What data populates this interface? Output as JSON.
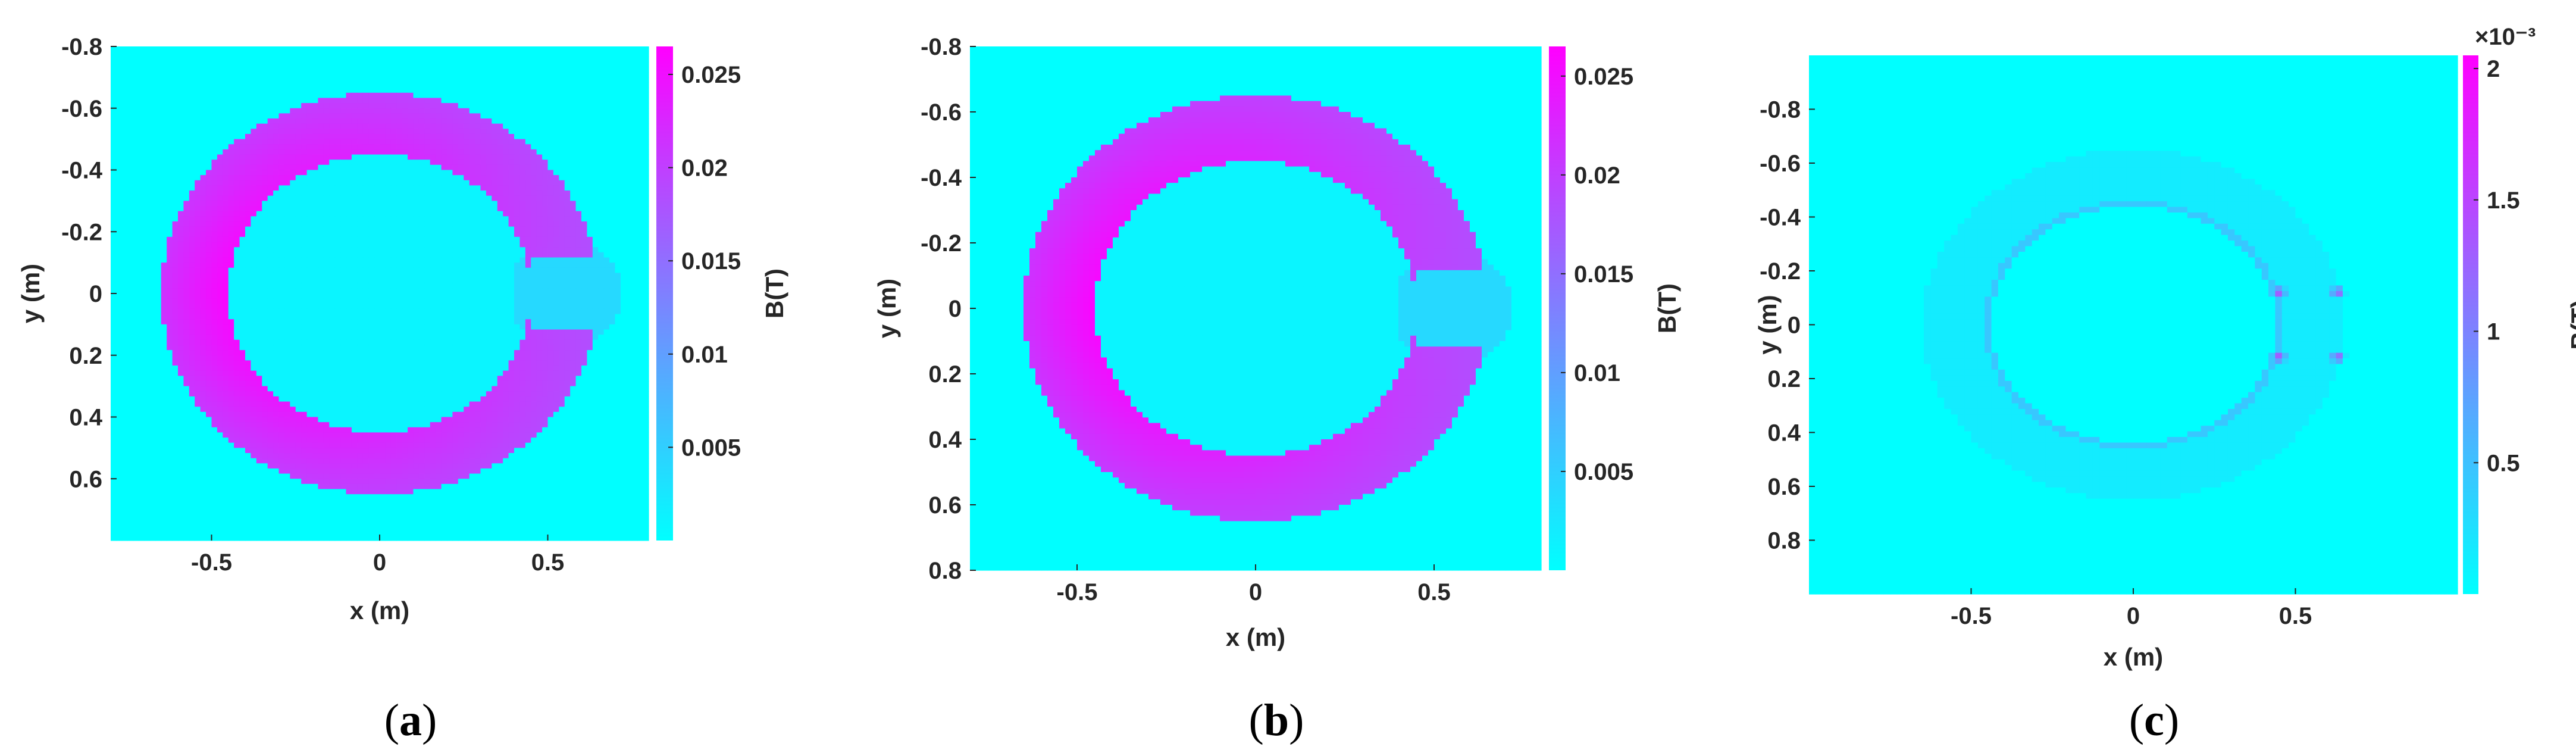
{
  "colors": {
    "background": "#00ffff",
    "low": "#00ffff",
    "high": "#ff00ff"
  },
  "chart_data": [
    {
      "type": "heatmap",
      "caption": {
        "open": "(",
        "letter": "a",
        "close": ")"
      },
      "xlabel": "x (m)",
      "ylabel": "y (m)",
      "colorbar_label": "B(T)",
      "colorbar_exponent": "",
      "xlim": [
        -0.8,
        0.8
      ],
      "ylim": [
        -0.8,
        0.8
      ],
      "y_reversed": true,
      "xticks": [
        -0.5,
        0,
        0.5
      ],
      "xtick_labels": [
        "-0.5",
        "0",
        "0.5"
      ],
      "yticks": [
        -0.8,
        -0.6,
        -0.4,
        -0.2,
        0,
        0.2,
        0.4,
        0.6
      ],
      "ytick_labels": [
        "-0.8",
        "-0.6",
        "-0.4",
        "-0.2",
        "0",
        "0.2",
        "0.4",
        "0.6"
      ],
      "clim": [
        0,
        0.0265
      ],
      "cticks": [
        0.005,
        0.01,
        0.015,
        0.02,
        0.025
      ],
      "ctick_labels": [
        "0.005",
        "0.01",
        "0.015",
        "0.02",
        "0.025"
      ],
      "field": {
        "ring_inner_radius": 0.45,
        "ring_outer_radius": 0.65,
        "ring_max": 0.026,
        "ring_min": 0.0135,
        "background": 0.0,
        "interior": 0.001,
        "gap_x": [
          0.45,
          0.65
        ],
        "gap_half_height": 0.12,
        "gap_value": 0.004
      }
    },
    {
      "type": "heatmap",
      "caption": {
        "open": "(",
        "letter": "b",
        "close": ")"
      },
      "xlabel": "x (m)",
      "ylabel": "y (m)",
      "colorbar_label": "B(T)",
      "colorbar_exponent": "",
      "xlim": [
        -0.8,
        0.8
      ],
      "ylim": [
        -0.8,
        0.8
      ],
      "y_reversed": true,
      "xticks": [
        -0.5,
        0,
        0.5
      ],
      "xtick_labels": [
        "-0.5",
        "0",
        "0.5"
      ],
      "yticks": [
        -0.8,
        -0.6,
        -0.4,
        -0.2,
        0,
        0.2,
        0.4,
        0.6,
        0.8
      ],
      "ytick_labels": [
        "-0.8",
        "-0.6",
        "-0.4",
        "-0.2",
        "0",
        "0.2",
        "0.4",
        "0.6",
        "0.8"
      ],
      "clim": [
        0,
        0.0265
      ],
      "cticks": [
        0.005,
        0.01,
        0.015,
        0.02,
        0.025
      ],
      "ctick_labels": [
        "0.005",
        "0.01",
        "0.015",
        "0.02",
        "0.025"
      ],
      "field": {
        "ring_inner_radius": 0.45,
        "ring_outer_radius": 0.65,
        "ring_max": 0.026,
        "ring_min": 0.0135,
        "background": 0.0,
        "interior": 0.001,
        "gap_x": [
          0.45,
          0.65
        ],
        "gap_half_height": 0.12,
        "gap_value": 0.004
      }
    },
    {
      "type": "heatmap",
      "caption": {
        "open": "(",
        "letter": "c",
        "close": ")"
      },
      "xlabel": "x (m)",
      "ylabel": "y (m)",
      "colorbar_label": "B(T)",
      "colorbar_exponent": "×10⁻³",
      "xlim": [
        -1.0,
        1.0
      ],
      "ylim": [
        -1.0,
        1.0
      ],
      "y_reversed": true,
      "xticks": [
        -0.5,
        0,
        0.5
      ],
      "xtick_labels": [
        "-0.5",
        "0",
        "0.5"
      ],
      "yticks": [
        -0.8,
        -0.6,
        -0.4,
        -0.2,
        0,
        0.2,
        0.4,
        0.6,
        0.8
      ],
      "ytick_labels": [
        "-0.8",
        "-0.6",
        "-0.4",
        "-0.2",
        "0",
        "0.2",
        "0.4",
        "0.6",
        "0.8"
      ],
      "clim": [
        0,
        2.05
      ],
      "cticks": [
        0.5,
        1,
        1.5,
        2
      ],
      "ctick_labels": [
        "0.5",
        "1",
        "1.5",
        "2"
      ],
      "field": {
        "ring_inner_radius": 0.45,
        "ring_outer_radius": 0.65,
        "ring_value": 0.15,
        "background": 0.0,
        "hotspots": [
          {
            "x": 0.45,
            "y": -0.12,
            "value": 1.6
          },
          {
            "x": 0.63,
            "y": -0.12,
            "value": 1.5
          },
          {
            "x": 0.45,
            "y": 0.12,
            "value": 1.6
          },
          {
            "x": 0.63,
            "y": 0.12,
            "value": 1.5
          }
        ]
      }
    }
  ]
}
